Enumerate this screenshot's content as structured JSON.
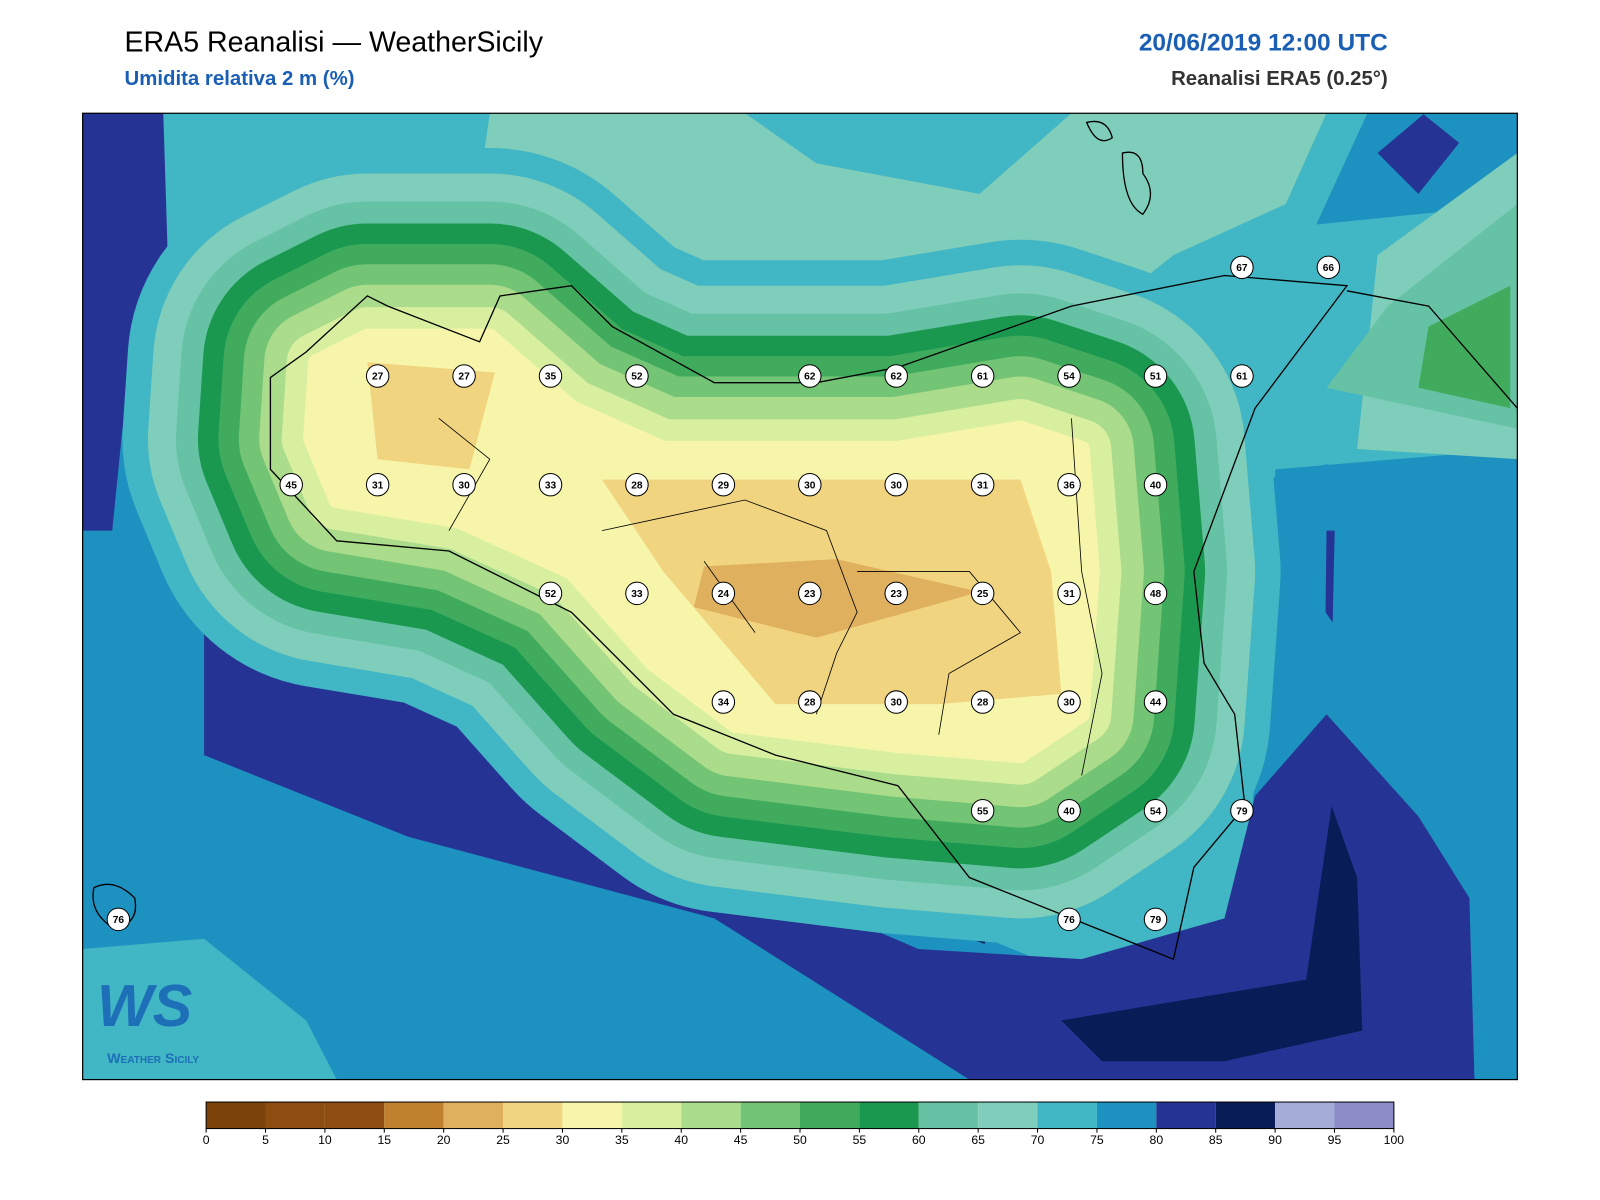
{
  "header": {
    "title": "ERA5 Reanalisi — WeatherSicily",
    "subtitle": "Umidita relativa 2 m (%)",
    "date": "20/06/2019 12:00 UTC",
    "source": "Reanalisi ERA5 (0.25°)"
  },
  "map": {
    "stations": [
      [
        null,
        null,
        null,
        null,
        null,
        null,
        null,
        null,
        null,
        null,
        null,
        null,
        null,
        67,
        66
      ],
      [
        null,
        null,
        null,
        27,
        27,
        35,
        52,
        null,
        62,
        62,
        61,
        54,
        51,
        61,
        null
      ],
      [
        null,
        null,
        45,
        31,
        30,
        33,
        28,
        29,
        30,
        30,
        31,
        36,
        40,
        null,
        null
      ],
      [
        null,
        null,
        null,
        null,
        null,
        52,
        33,
        24,
        23,
        23,
        25,
        31,
        48,
        null,
        null
      ],
      [
        null,
        null,
        null,
        null,
        null,
        null,
        null,
        34,
        28,
        30,
        28,
        30,
        44,
        null,
        null
      ],
      [
        null,
        null,
        null,
        null,
        null,
        null,
        null,
        null,
        null,
        null,
        55,
        40,
        54,
        79,
        null
      ],
      [
        76,
        null,
        null,
        null,
        null,
        null,
        null,
        null,
        null,
        null,
        null,
        76,
        79,
        null,
        null
      ]
    ]
  },
  "colorbar": {
    "levels": [
      0,
      5,
      10,
      15,
      20,
      25,
      30,
      35,
      40,
      45,
      50,
      55,
      60,
      65,
      70,
      75,
      80,
      85,
      90,
      95,
      100
    ],
    "colors": [
      "#7b4309",
      "#8d4d10",
      "#8d4d10",
      "#bf812d",
      "#dfb05d",
      "#f0d47f",
      "#f6f5aa",
      "#d9efa0",
      "#aadc8c",
      "#74c476",
      "#41ab5d",
      "#1a9850",
      "#66c2a4",
      "#7fcdbb",
      "#41b6c4",
      "#1d91c0",
      "#253494",
      "#081d58",
      "#a6acd8",
      "#8c8cc8"
    ]
  },
  "logo": {
    "mark": "WS",
    "text": "Weather Sicily"
  }
}
